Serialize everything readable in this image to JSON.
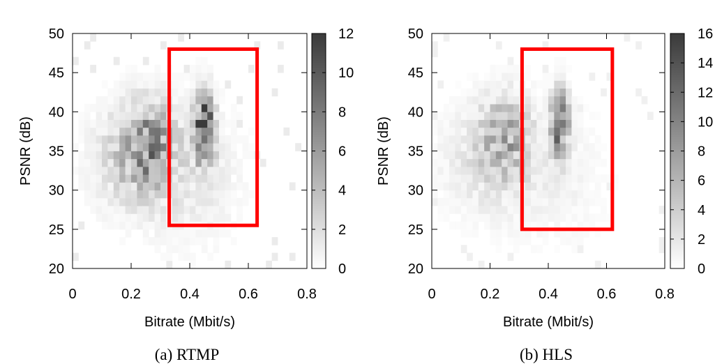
{
  "chart_data": [
    {
      "type": "heatmap",
      "caption": "(a)  RTMP",
      "title": "",
      "xlabel": "Bitrate (Mbit/s)",
      "ylabel": "PSNR (dB)",
      "xlim": [
        0,
        0.8
      ],
      "ylim": [
        20,
        50
      ],
      "xticks": [
        "0",
        "0.2",
        "0.4",
        "0.6",
        "0.8"
      ],
      "yticks": [
        "20",
        "25",
        "30",
        "35",
        "40",
        "45",
        "50"
      ],
      "colorbar": {
        "range": [
          0,
          12
        ],
        "ticks": [
          "0",
          "2",
          "4",
          "6",
          "8",
          "10",
          "12"
        ],
        "colors": [
          "#ffffff",
          "#3a3a3a"
        ]
      },
      "highlight_box": {
        "x": [
          0.33,
          0.63
        ],
        "y": [
          25.5,
          48
        ],
        "color": "#ff0000"
      },
      "clusters": [
        {
          "x": 0.45,
          "y": 38,
          "sx": 0.022,
          "sy": 3.0,
          "peak": 11
        },
        {
          "x": 0.26,
          "y": 36,
          "sx": 0.06,
          "sy": 3.5,
          "peak": 5
        },
        {
          "x": 0.2,
          "y": 34,
          "sx": 0.09,
          "sy": 4.5,
          "peak": 2.5
        },
        {
          "x": 0.4,
          "y": 32,
          "sx": 0.12,
          "sy": 6.0,
          "peak": 1.2
        }
      ]
    },
    {
      "type": "heatmap",
      "caption": "(b)  HLS",
      "title": "",
      "xlabel": "Bitrate (Mbit/s)",
      "ylabel": "PSNR (dB)",
      "xlim": [
        0,
        0.8
      ],
      "ylim": [
        20,
        50
      ],
      "xticks": [
        "0",
        "0.2",
        "0.4",
        "0.6",
        "0.8"
      ],
      "yticks": [
        "20",
        "25",
        "30",
        "35",
        "40",
        "45",
        "50"
      ],
      "colorbar": {
        "range": [
          0,
          16
        ],
        "ticks": [
          "0",
          "2",
          "4",
          "6",
          "8",
          "10",
          "12",
          "14",
          "16"
        ],
        "colors": [
          "#ffffff",
          "#3a3a3a"
        ]
      },
      "highlight_box": {
        "x": [
          0.31,
          0.62
        ],
        "y": [
          25,
          48
        ],
        "color": "#ff0000"
      },
      "clusters": [
        {
          "x": 0.44,
          "y": 38.5,
          "sx": 0.02,
          "sy": 2.8,
          "peak": 12
        },
        {
          "x": 0.25,
          "y": 37,
          "sx": 0.06,
          "sy": 3.5,
          "peak": 5
        },
        {
          "x": 0.18,
          "y": 34,
          "sx": 0.1,
          "sy": 4.5,
          "peak": 2.2
        },
        {
          "x": 0.4,
          "y": 32,
          "sx": 0.13,
          "sy": 6.0,
          "peak": 1.0
        }
      ]
    }
  ]
}
